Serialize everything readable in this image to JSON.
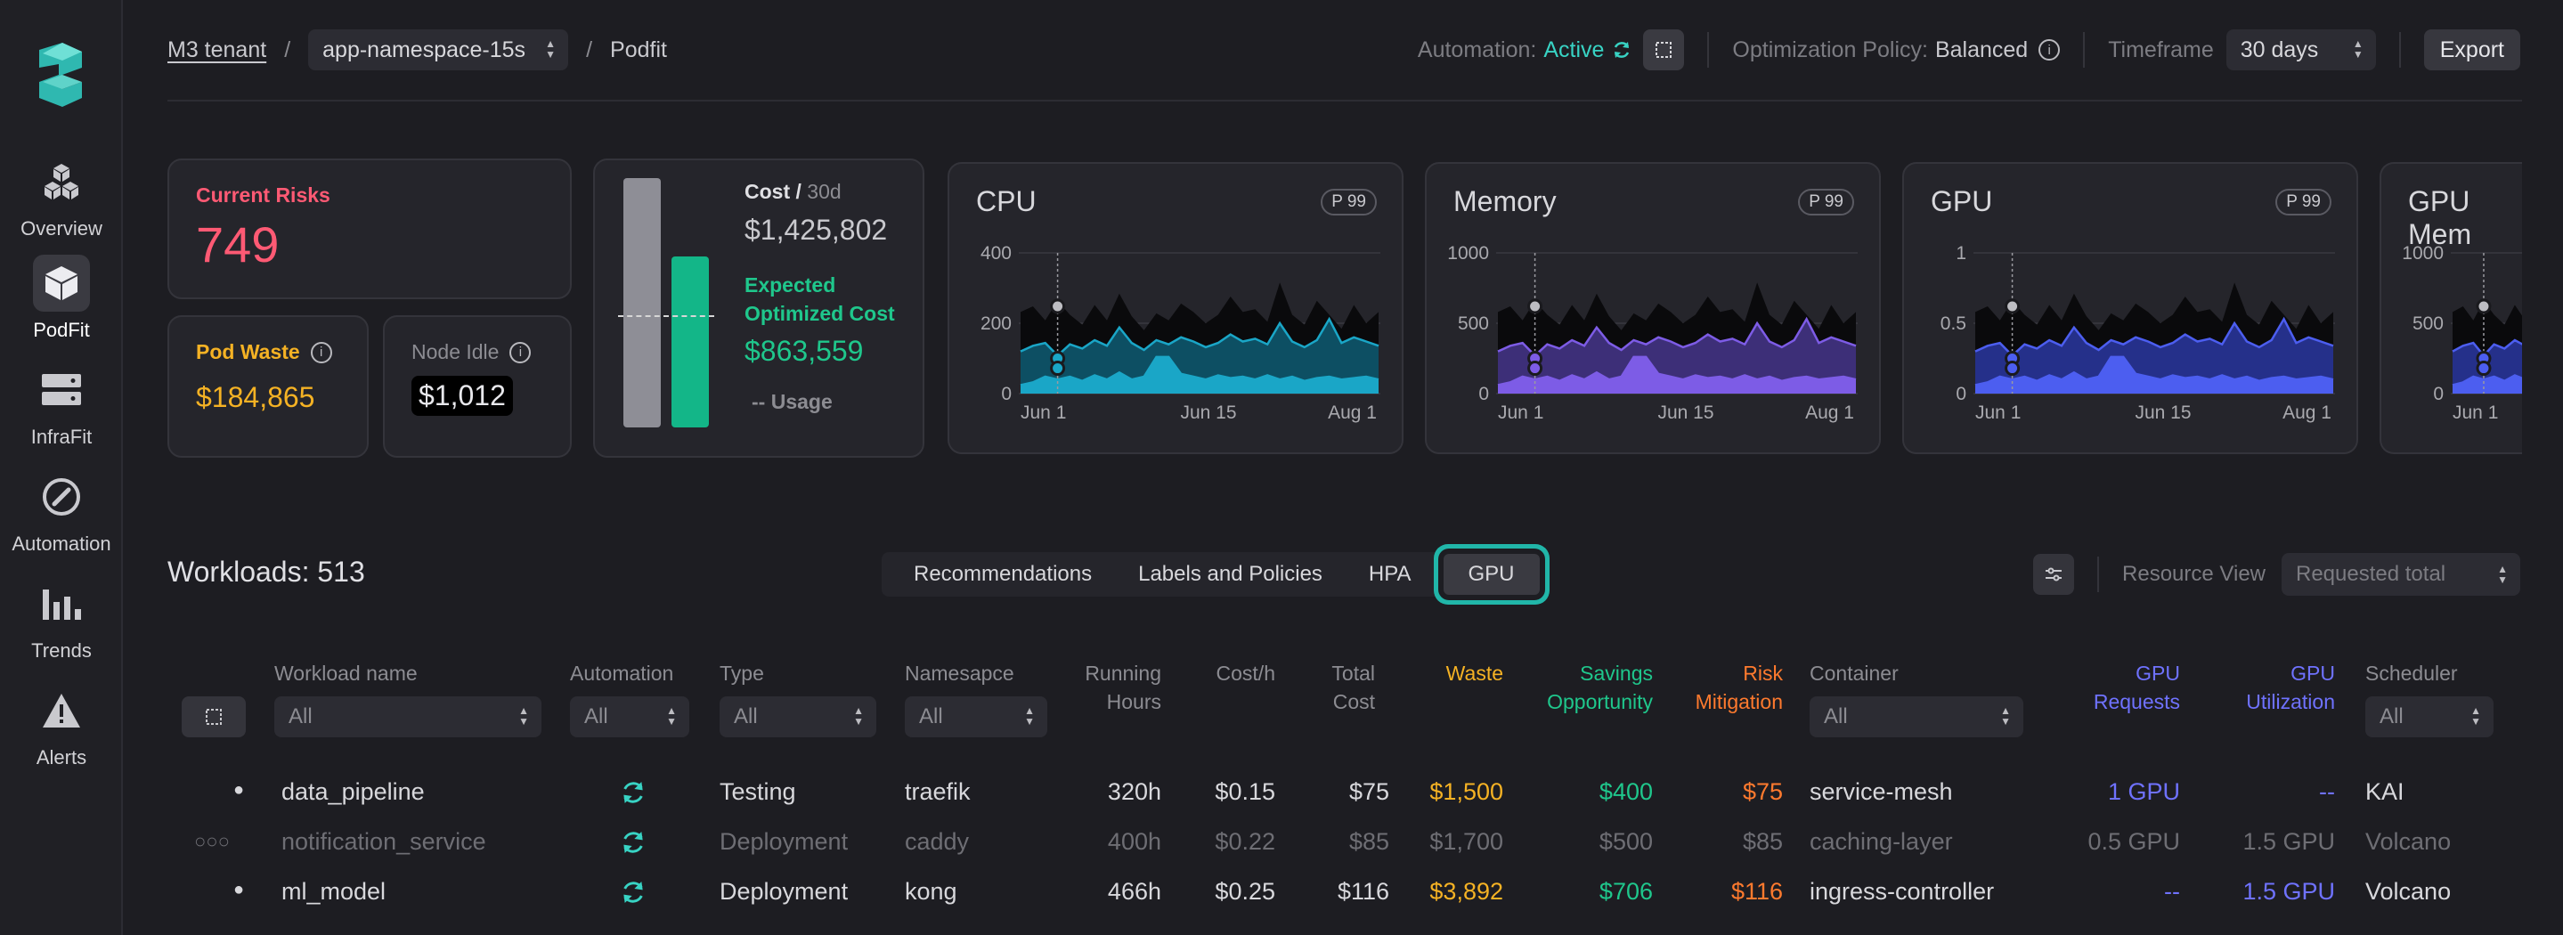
{
  "sidebar": {
    "items": [
      {
        "label": "Overview",
        "icon": "cubes-icon"
      },
      {
        "label": "PodFit",
        "icon": "cube-icon",
        "active": true
      },
      {
        "label": "InfraFit",
        "icon": "server-icon"
      },
      {
        "label": "Automation",
        "icon": "compass-icon"
      },
      {
        "label": "Trends",
        "icon": "bar-chart-icon"
      },
      {
        "label": "Alerts",
        "icon": "warning-icon"
      }
    ]
  },
  "header": {
    "breadcrumb": {
      "tenant": "M3 tenant",
      "namespace": "app-namespace-15s",
      "page": "Podfit"
    },
    "automation_label": "Automation:",
    "automation_value": "Active",
    "policy_label": "Optimization Policy:",
    "policy_value": "Balanced",
    "timeframe_label": "Timeframe",
    "timeframe_value": "30 days",
    "export_label": "Export"
  },
  "summary": {
    "risks_label": "Current Risks",
    "risks_value": "749",
    "pod_waste_label": "Pod Waste",
    "pod_waste_value": "$184,865",
    "node_idle_label": "Node Idle",
    "node_idle_value": "$1,012",
    "cost_label": "Cost /",
    "cost_period": "30d",
    "cost_value": "$1,425,802",
    "expected_label": "Expected Optimized Cost",
    "expected_value": "$863,559",
    "usage_label": "-- Usage"
  },
  "charts": [
    {
      "title": "CPU",
      "badge": "P 99",
      "yticks": [
        "400",
        "200",
        "0"
      ],
      "xticks": [
        "Jun 1",
        "Jun 15",
        "Aug 1"
      ],
      "color": "#1aa6c7",
      "dark": "#0d4f63"
    },
    {
      "title": "Memory",
      "badge": "P 99",
      "yticks": [
        "1000",
        "500",
        "0"
      ],
      "xticks": [
        "Jun 1",
        "Jun 15",
        "Aug 1"
      ],
      "color": "#7d5ce6",
      "dark": "#3d2f78"
    },
    {
      "title": "GPU",
      "badge": "P 99",
      "yticks": [
        "1",
        "0.5",
        "0"
      ],
      "xticks": [
        "Jun 1",
        "Jun 15",
        "Aug 1"
      ],
      "color": "#4c5ef0",
      "dark": "#25308a"
    },
    {
      "title": "GPU Mem",
      "badge": "",
      "yticks": [
        "1000",
        "500",
        "0"
      ],
      "xticks": [
        "Jun 1"
      ],
      "color": "#4c5ef0",
      "dark": "#25308a"
    }
  ],
  "workloads": {
    "title": "Workloads: 513",
    "tabs": [
      "Recommendations",
      "Labels and Policies",
      "HPA",
      "GPU"
    ],
    "selected_tab": "GPU",
    "resource_view_label": "Resource View",
    "resource_view_value": "Requested total"
  },
  "table": {
    "headers": {
      "workload": "Workload  name",
      "automation": "Automation",
      "type": "Type",
      "namespace": "Namesapce",
      "running_1": "Running",
      "running_2": "Hours",
      "cost_h": "Cost/h",
      "total_1": "Total",
      "total_2": "Cost",
      "waste": "Waste",
      "savings_1": "Savings",
      "savings_2": "Opportunity",
      "risk_1": "Risk",
      "risk_2": "Mitigation",
      "container": "Container",
      "gpu_req_1": "GPU",
      "gpu_req_2": "Requests",
      "gpu_util_1": "GPU",
      "gpu_util_2": "Utilization",
      "scheduler": "Scheduler"
    },
    "filter_all": "All",
    "rows": [
      {
        "status": "●",
        "name": "data_pipeline",
        "type": "Testing",
        "namespace": "traefik",
        "hours": "320h",
        "cost_h": "$0.15",
        "total": "$75",
        "waste": "$1,500",
        "savings": "$400",
        "risk": "$75",
        "container": "service-mesh",
        "gpu_req": "1 GPU",
        "gpu_util": "--",
        "scheduler": "KAI",
        "state": "on"
      },
      {
        "status": "○○○",
        "name": "notification_service",
        "type": "Deployment",
        "namespace": "caddy",
        "hours": "400h",
        "cost_h": "$0.22",
        "total": "$85",
        "waste": "$1,700",
        "savings": "$500",
        "risk": "$85",
        "container": "caching-layer",
        "gpu_req": "0.5 GPU",
        "gpu_util": "1.5 GPU",
        "scheduler": "Volcano",
        "state": "dim"
      },
      {
        "status": "●",
        "name": "ml_model",
        "type": "Deployment",
        "namespace": "kong",
        "hours": "466h",
        "cost_h": "$0.25",
        "total": "$116",
        "waste": "$3,892",
        "savings": "$706",
        "risk": "$116",
        "container": "ingress-controller",
        "gpu_req": "--",
        "gpu_util": "1.5 GPU",
        "scheduler": "Volcano",
        "state": "on"
      }
    ]
  }
}
